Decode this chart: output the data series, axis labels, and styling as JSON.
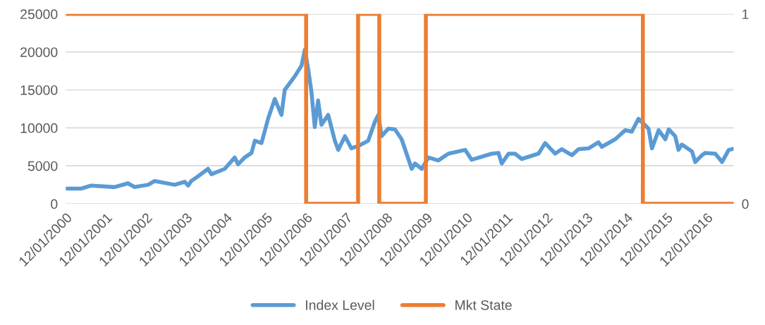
{
  "chart_data": {
    "type": "line",
    "xlim": [
      "2000-01-12",
      "2016-09-15"
    ],
    "xticks": [
      {
        "value": "2000-01-12",
        "label": "12/01/2000"
      },
      {
        "value": "2001-01-12",
        "label": "12/01/2001"
      },
      {
        "value": "2002-01-12",
        "label": "12/01/2002"
      },
      {
        "value": "2003-01-12",
        "label": "12/01/2003"
      },
      {
        "value": "2004-01-12",
        "label": "12/01/2004"
      },
      {
        "value": "2005-01-12",
        "label": "12/01/2005"
      },
      {
        "value": "2006-01-12",
        "label": "12/01/2006"
      },
      {
        "value": "2007-01-12",
        "label": "12/01/2007"
      },
      {
        "value": "2008-01-12",
        "label": "12/01/2008"
      },
      {
        "value": "2009-01-12",
        "label": "12/01/2009"
      },
      {
        "value": "2010-01-12",
        "label": "12/01/2010"
      },
      {
        "value": "2011-01-12",
        "label": "12/01/2011"
      },
      {
        "value": "2012-01-12",
        "label": "12/01/2012"
      },
      {
        "value": "2013-01-12",
        "label": "12/01/2013"
      },
      {
        "value": "2014-01-12",
        "label": "12/01/2014"
      },
      {
        "value": "2015-01-12",
        "label": "12/01/2015"
      },
      {
        "value": "2016-01-12",
        "label": "12/01/2016"
      }
    ],
    "ylim": [
      0,
      25000
    ],
    "yticks": [
      0,
      5000,
      10000,
      15000,
      20000,
      25000
    ],
    "y2lim": [
      0,
      1
    ],
    "y2ticks": [
      0,
      1
    ],
    "grid": "y",
    "legend": "bottom",
    "marker": "none",
    "line_style": "solid",
    "series": [
      {
        "name": "Index Level",
        "color": "#5b9bd5",
        "x": [
          "2000-01-12",
          "2000-06",
          "2000-09",
          "2001-04",
          "2001-08",
          "2001-10",
          "2002-02",
          "2002-04",
          "2002-10",
          "2003-01",
          "2003-02",
          "2003-03",
          "2003-05",
          "2003-08",
          "2003-09",
          "2004-01",
          "2004-04",
          "2004-05",
          "2004-07",
          "2004-09",
          "2004-10",
          "2004-12",
          "2005-02",
          "2005-04",
          "2005-06",
          "2005-07",
          "2005-10",
          "2005-12",
          "2006-01",
          "2006-02",
          "2006-03",
          "2006-04",
          "2006-05",
          "2006-06",
          "2006-08",
          "2006-10",
          "2006-11",
          "2007-01",
          "2007-03",
          "2007-05",
          "2007-08",
          "2007-10",
          "2007-11",
          "2007-12",
          "2008-02",
          "2008-04",
          "2008-06",
          "2008-09",
          "2008-10",
          "2008-12",
          "2009-02",
          "2009-05",
          "2009-08",
          "2010-01",
          "2010-03",
          "2010-09",
          "2010-11",
          "2010-12",
          "2011-02",
          "2011-04",
          "2011-06",
          "2011-11",
          "2012-01",
          "2012-04",
          "2012-06",
          "2012-09",
          "2012-11",
          "2013-02",
          "2013-05",
          "2013-06",
          "2013-10",
          "2014-01",
          "2014-03",
          "2014-05",
          "2014-08",
          "2014-09",
          "2014-11",
          "2015-01",
          "2015-02",
          "2015-04",
          "2015-05",
          "2015-06",
          "2015-09",
          "2015-10",
          "2015-12",
          "2016-01",
          "2016-04",
          "2016-06",
          "2016-08",
          "2016-09"
        ],
        "values": [
          2000,
          2000,
          2400,
          2200,
          2700,
          2200,
          2500,
          3000,
          2500,
          2900,
          2400,
          3000,
          3600,
          4600,
          3900,
          4600,
          6100,
          5200,
          6100,
          6700,
          8300,
          8000,
          11300,
          13800,
          11700,
          15000,
          16800,
          18200,
          20300,
          17600,
          14800,
          10100,
          13600,
          10400,
          11700,
          8300,
          7100,
          8900,
          7300,
          7600,
          8300,
          10800,
          11700,
          8900,
          9900,
          9800,
          8500,
          4600,
          5300,
          4600,
          6100,
          5700,
          6600,
          7100,
          5800,
          6600,
          6700,
          5300,
          6600,
          6600,
          5900,
          6600,
          8000,
          6600,
          7200,
          6400,
          7200,
          7300,
          8100,
          7500,
          8500,
          9700,
          9500,
          11200,
          9900,
          7300,
          9700,
          8500,
          9800,
          8900,
          7100,
          7800,
          6900,
          5500,
          6400,
          6700,
          6600,
          5500,
          7100,
          7200
        ]
      },
      {
        "name": "Mkt State",
        "color": "#ed7d31",
        "type": "step",
        "axis": "y2",
        "x": [
          "2000-01-12",
          "2006-01-12",
          "2007-05-01",
          "2007-11-10",
          "2009-01-08",
          "2014-06-10",
          "2016-09-15"
        ],
        "values": [
          1,
          0,
          1,
          0,
          1,
          0,
          0
        ]
      }
    ]
  }
}
